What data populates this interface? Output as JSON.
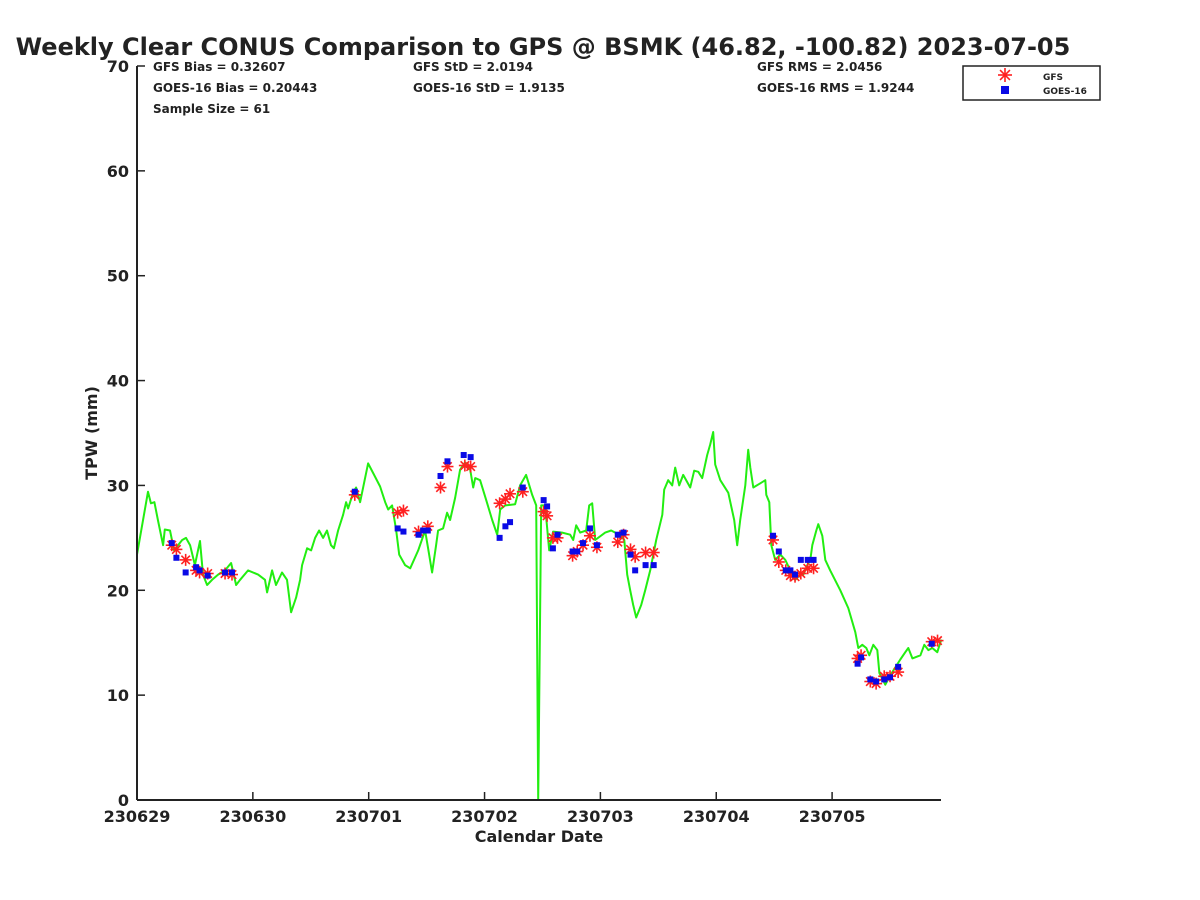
{
  "chart_data": {
    "type": "line",
    "title": "Weekly Clear CONUS Comparison to GPS @ BSMK (46.82, -100.82) 2023-07-05",
    "xlabel": "Calendar Date",
    "ylabel": "TPW (mm)",
    "xlim": [
      0,
      6.94
    ],
    "ylim": [
      0,
      70
    ],
    "x_unit": "days since 230629",
    "x_ticks": [
      0,
      1,
      2,
      3,
      4,
      5,
      6
    ],
    "x_tick_labels": [
      "230629",
      "230630",
      "230701",
      "230702",
      "230703",
      "230704",
      "230705"
    ],
    "y_ticks": [
      0,
      10,
      20,
      30,
      40,
      50,
      60,
      70
    ],
    "y_tick_labels": [
      "0",
      "10",
      "20",
      "30",
      "40",
      "50",
      "60",
      "70"
    ],
    "grid": false,
    "legend": {
      "placement": "top-right-outside",
      "entries": [
        "GFS",
        "GOES-16"
      ]
    },
    "stats": {
      "gfs_bias": "GFS Bias = 0.32607",
      "goes_bias": "GOES-16 Bias = 0.20443",
      "sample_size": "Sample Size = 61",
      "gfs_std": "GFS StD = 2.0194",
      "goes_std": "GOES-16 StD = 1.9135",
      "gfs_rms": "GFS RMS = 2.0456",
      "goes_rms": "GOES-16 RMS = 1.9244"
    },
    "colors": {
      "gps": "#22ee11",
      "gfs": "#ff2020",
      "goes": "#0a0ae6"
    },
    "series": [
      {
        "name": "GPS",
        "kind": "line",
        "x": [
          0,
          0.095,
          0.12,
          0.15,
          0.18,
          0.225,
          0.24,
          0.285,
          0.32,
          0.354,
          0.39,
          0.423,
          0.458,
          0.5,
          0.544,
          0.57,
          0.605,
          0.648,
          0.7,
          0.76,
          0.812,
          0.855,
          0.89,
          0.959,
          1.045,
          1.105,
          1.123,
          1.166,
          1.2,
          1.252,
          1.295,
          1.33,
          1.373,
          1.408,
          1.425,
          1.468,
          1.503,
          1.537,
          1.572,
          1.606,
          1.64,
          1.675,
          1.7,
          1.736,
          1.779,
          1.805,
          1.822,
          1.865,
          1.891,
          1.926,
          1.995,
          2.047,
          2.098,
          2.142,
          2.168,
          2.202,
          2.237,
          2.263,
          2.314,
          2.358,
          2.427,
          2.487,
          2.513,
          2.547,
          2.582,
          2.599,
          2.642,
          2.677,
          2.703,
          2.746,
          2.789,
          2.832,
          2.876,
          2.902,
          2.919,
          2.962,
          3.014,
          3.066,
          3.109,
          3.135,
          3.178,
          3.264,
          3.307,
          3.359,
          3.411,
          3.446,
          3.463,
          3.489,
          3.523,
          3.558,
          3.592,
          3.67,
          3.739,
          3.765,
          3.791,
          3.826,
          3.877,
          3.903,
          3.929,
          3.955,
          4.041,
          4.093,
          4.128,
          4.171,
          4.206,
          4.231,
          4.257,
          4.283,
          4.309,
          4.352,
          4.387,
          4.43,
          4.482,
          4.534,
          4.551,
          4.585,
          4.62,
          4.646,
          4.68,
          4.715,
          4.741,
          4.775,
          4.81,
          4.845,
          4.879,
          4.922,
          4.948,
          4.974,
          4.991,
          5.035,
          5.104,
          5.155,
          5.181,
          5.207,
          5.251,
          5.276,
          5.294,
          5.32,
          5.38,
          5.423,
          5.432,
          5.458,
          5.475,
          5.509,
          5.553,
          5.596,
          5.639,
          5.682,
          5.725,
          5.751,
          5.786,
          5.812,
          5.829,
          5.864,
          5.881,
          5.915,
          5.941,
          5.984,
          6.071,
          6.14,
          6.2,
          6.226,
          6.261,
          6.295,
          6.321,
          6.356,
          6.39,
          6.408,
          6.459,
          6.503,
          6.589,
          6.632,
          6.658,
          6.693,
          6.762,
          6.796,
          6.831,
          6.865,
          6.908,
          6.943
        ],
        "y": [
          23.4,
          29.4,
          28.3,
          28.4,
          26.7,
          24.3,
          25.8,
          25.7,
          23.8,
          24.3,
          24.8,
          25.0,
          24.3,
          22.4,
          24.7,
          21.5,
          20.5,
          21.0,
          21.5,
          21.9,
          22.6,
          20.5,
          21.0,
          21.9,
          21.5,
          21.0,
          19.8,
          21.9,
          20.5,
          21.7,
          21.0,
          17.9,
          19.3,
          21.0,
          22.4,
          24.0,
          23.8,
          25.0,
          25.7,
          25.0,
          25.7,
          24.3,
          24.0,
          25.7,
          27.2,
          28.4,
          27.8,
          29.3,
          29.8,
          28.4,
          32.1,
          31.0,
          29.9,
          28.4,
          27.7,
          28.1,
          25.7,
          23.4,
          22.4,
          22.1,
          23.8,
          25.7,
          24.0,
          21.7,
          24.3,
          25.7,
          25.9,
          27.4,
          26.7,
          28.8,
          31.5,
          32.2,
          31.5,
          29.8,
          30.7,
          30.5,
          28.6,
          26.7,
          25.3,
          27.7,
          28.1,
          28.2,
          30.0,
          31.0,
          29.1,
          28.1,
          0,
          28.1,
          28.1,
          23.8,
          25.6,
          25.5,
          25.3,
          24.8,
          26.2,
          25.5,
          25.7,
          28.1,
          28.3,
          24.8,
          25.5,
          25.7,
          25.5,
          25.3,
          24.8,
          21.5,
          20.0,
          18.6,
          17.4,
          18.6,
          20.0,
          21.9,
          24.8,
          27.2,
          29.6,
          30.5,
          30.0,
          31.7,
          30.0,
          31.0,
          30.5,
          29.8,
          31.4,
          31.3,
          30.7,
          32.9,
          33.9,
          35.1,
          32.0,
          30.5,
          29.3,
          26.7,
          24.3,
          26.7,
          30.0,
          33.4,
          31.7,
          29.8,
          30.2,
          30.5,
          29.1,
          28.4,
          24.3,
          22.9,
          23.4,
          22.9,
          21.9,
          21.0,
          21.5,
          21.5,
          22.4,
          22.9,
          24.3,
          25.7,
          26.3,
          25.2,
          22.9,
          21.9,
          20.0,
          18.3,
          16.0,
          14.5,
          14.8,
          14.5,
          13.8,
          14.8,
          14.3,
          12.1,
          11.0,
          11.9,
          13.4,
          14.1,
          14.5,
          13.5,
          13.8,
          14.8,
          14.3,
          14.5,
          14.1,
          15.3
        ]
      },
      {
        "name": "GFS",
        "kind": "scatter",
        "marker": "asterisk",
        "x": [
          0.3,
          0.34,
          0.42,
          0.51,
          0.54,
          0.61,
          0.76,
          0.82,
          1.88,
          2.25,
          2.3,
          2.43,
          2.51,
          2.62,
          2.68,
          2.83,
          2.88,
          3.13,
          3.18,
          3.22,
          3.33,
          3.51,
          3.54,
          3.59,
          3.63,
          3.76,
          3.8,
          3.85,
          3.91,
          3.97,
          4.15,
          4.2,
          4.26,
          4.3,
          4.39,
          4.46,
          5.49,
          5.54,
          5.6,
          5.64,
          5.68,
          5.73,
          5.79,
          5.84,
          6.22,
          6.25,
          6.33,
          6.38,
          6.45,
          6.5,
          6.57,
          6.86,
          6.91
        ],
        "y": [
          24.3,
          23.9,
          22.9,
          21.9,
          21.7,
          21.6,
          21.6,
          21.5,
          29.1,
          27.4,
          27.6,
          25.6,
          26.1,
          29.8,
          31.8,
          31.9,
          31.8,
          28.3,
          28.7,
          29.2,
          29.4,
          27.5,
          27.1,
          25.0,
          25.0,
          23.3,
          23.7,
          24.3,
          25.2,
          24.1,
          24.6,
          25.3,
          23.9,
          23.2,
          23.6,
          23.6,
          24.8,
          22.7,
          21.9,
          21.4,
          21.3,
          21.6,
          22.1,
          22.1,
          13.5,
          13.8,
          11.3,
          11.1,
          11.8,
          11.8,
          12.2,
          15.1,
          15.2
        ]
      },
      {
        "name": "GOES-16",
        "kind": "scatter",
        "marker": "square",
        "x": [
          0.3,
          0.34,
          0.42,
          0.51,
          0.54,
          0.61,
          0.76,
          0.82,
          1.88,
          2.25,
          2.3,
          2.43,
          2.47,
          2.51,
          2.62,
          2.68,
          2.82,
          2.88,
          3.13,
          3.18,
          3.22,
          3.33,
          3.51,
          3.54,
          3.59,
          3.63,
          3.76,
          3.8,
          3.85,
          3.91,
          3.97,
          4.15,
          4.2,
          4.26,
          4.3,
          4.39,
          4.46,
          5.49,
          5.54,
          5.6,
          5.64,
          5.68,
          5.73,
          5.79,
          5.84,
          6.22,
          6.25,
          6.33,
          6.38,
          6.45,
          6.5,
          6.57,
          6.86
        ],
        "y": [
          24.5,
          23.1,
          21.7,
          22.2,
          21.9,
          21.4,
          21.7,
          21.7,
          29.4,
          25.9,
          25.6,
          25.3,
          25.7,
          25.7,
          30.9,
          32.3,
          32.9,
          32.7,
          25.0,
          26.1,
          26.5,
          29.8,
          28.6,
          28.0,
          24.0,
          25.3,
          23.7,
          23.7,
          24.5,
          25.9,
          24.3,
          25.3,
          25.5,
          23.4,
          21.9,
          22.4,
          22.4,
          25.2,
          23.7,
          21.9,
          21.9,
          21.5,
          22.9,
          22.9,
          22.9,
          13.0,
          13.6,
          11.5,
          11.3,
          11.5,
          11.7,
          12.7,
          14.9
        ]
      }
    ]
  }
}
